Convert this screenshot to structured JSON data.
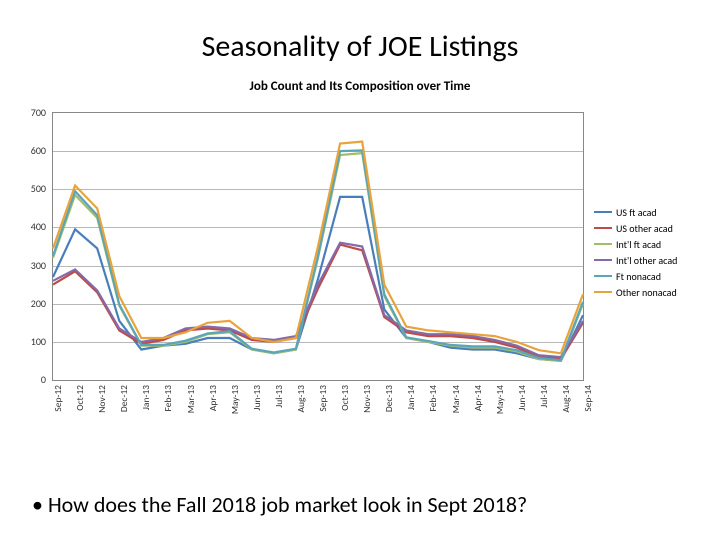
{
  "title": "Seasonality of JOE Listings",
  "subtitle": "Job Count and Its Composition over Time",
  "bullet": "How does the Fall 2018 job market look in Sept 2018?",
  "chart": {
    "type": "line",
    "ylim": [
      0,
      700
    ],
    "ytick_step": 100,
    "yticks": [
      0,
      100,
      200,
      300,
      400,
      500,
      600,
      700
    ],
    "categories": [
      "Sep-12",
      "Oct-12",
      "Nov-12",
      "Dec-12",
      "Jan-13",
      "Feb-13",
      "Mar-13",
      "Apr-13",
      "May-13",
      "Jun-13",
      "Jul-13",
      "Aug-13",
      "Sep-13",
      "Oct-13",
      "Nov-13",
      "Dec-13",
      "Jan-14",
      "Feb-14",
      "Mar-14",
      "Apr-14",
      "May-14",
      "Jun-14",
      "Jul-14",
      "Aug-14",
      "Sep-14"
    ],
    "plot_border_color": "#888888",
    "grid_color": "#b8b8b8",
    "background_color": "#ffffff",
    "tick_fontsize": 10,
    "series": [
      {
        "name": "US ft acad",
        "color": "#4a7ebb",
        "values": [
          270,
          395,
          345,
          155,
          80,
          90,
          95,
          110,
          110,
          80,
          70,
          80,
          265,
          480,
          480,
          185,
          110,
          100,
          85,
          80,
          80,
          70,
          55,
          50,
          170
        ]
      },
      {
        "name": "US other acad",
        "color": "#be4b48",
        "values": [
          250,
          285,
          230,
          130,
          95,
          105,
          130,
          135,
          130,
          105,
          100,
          110,
          240,
          355,
          340,
          165,
          125,
          115,
          115,
          110,
          100,
          85,
          60,
          55,
          150
        ]
      },
      {
        "name": "Int'l ft acad",
        "color": "#a2bd69",
        "values": [
          320,
          485,
          425,
          195,
          90,
          90,
          100,
          120,
          125,
          80,
          70,
          80,
          320,
          590,
          595,
          220,
          110,
          100,
          90,
          85,
          85,
          75,
          55,
          50,
          200
        ]
      },
      {
        "name": "Int'l other acad",
        "color": "#8569a9",
        "values": [
          260,
          290,
          235,
          135,
          100,
          110,
          135,
          140,
          135,
          110,
          105,
          115,
          250,
          360,
          350,
          170,
          130,
          120,
          120,
          115,
          105,
          90,
          65,
          60,
          155
        ]
      },
      {
        "name": "Ft nonacad",
        "color": "#5aa6b8",
        "values": [
          325,
          495,
          432,
          198,
          92,
          92,
          103,
          122,
          128,
          82,
          72,
          82,
          325,
          600,
          602,
          225,
          112,
          102,
          92,
          88,
          88,
          78,
          58,
          52,
          205
        ]
      },
      {
        "name": "Other nonacad",
        "color": "#e8a33d",
        "values": [
          345,
          510,
          450,
          220,
          110,
          110,
          125,
          150,
          155,
          110,
          100,
          110,
          350,
          620,
          625,
          250,
          140,
          130,
          125,
          120,
          115,
          100,
          78,
          70,
          225
        ]
      }
    ],
    "legend_position": "right"
  }
}
